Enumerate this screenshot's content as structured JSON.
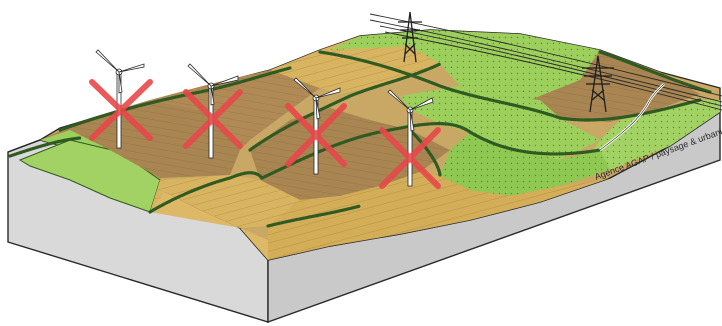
{
  "credit_text": "Agence AGAP / paysage & urbanisme",
  "icons": {
    "turbine": "wind-turbine-icon",
    "cross": "cross-mark-icon",
    "pylon": "power-pylon-icon"
  },
  "colors": {
    "cross": "#e8484a",
    "green_field": "#9dcf5c",
    "brown_field": "#a98552",
    "tan_field": "#d8b460",
    "hedge": "#2f5a22",
    "block_side": "#c9c9c9",
    "outline": "#2a2a2a"
  }
}
